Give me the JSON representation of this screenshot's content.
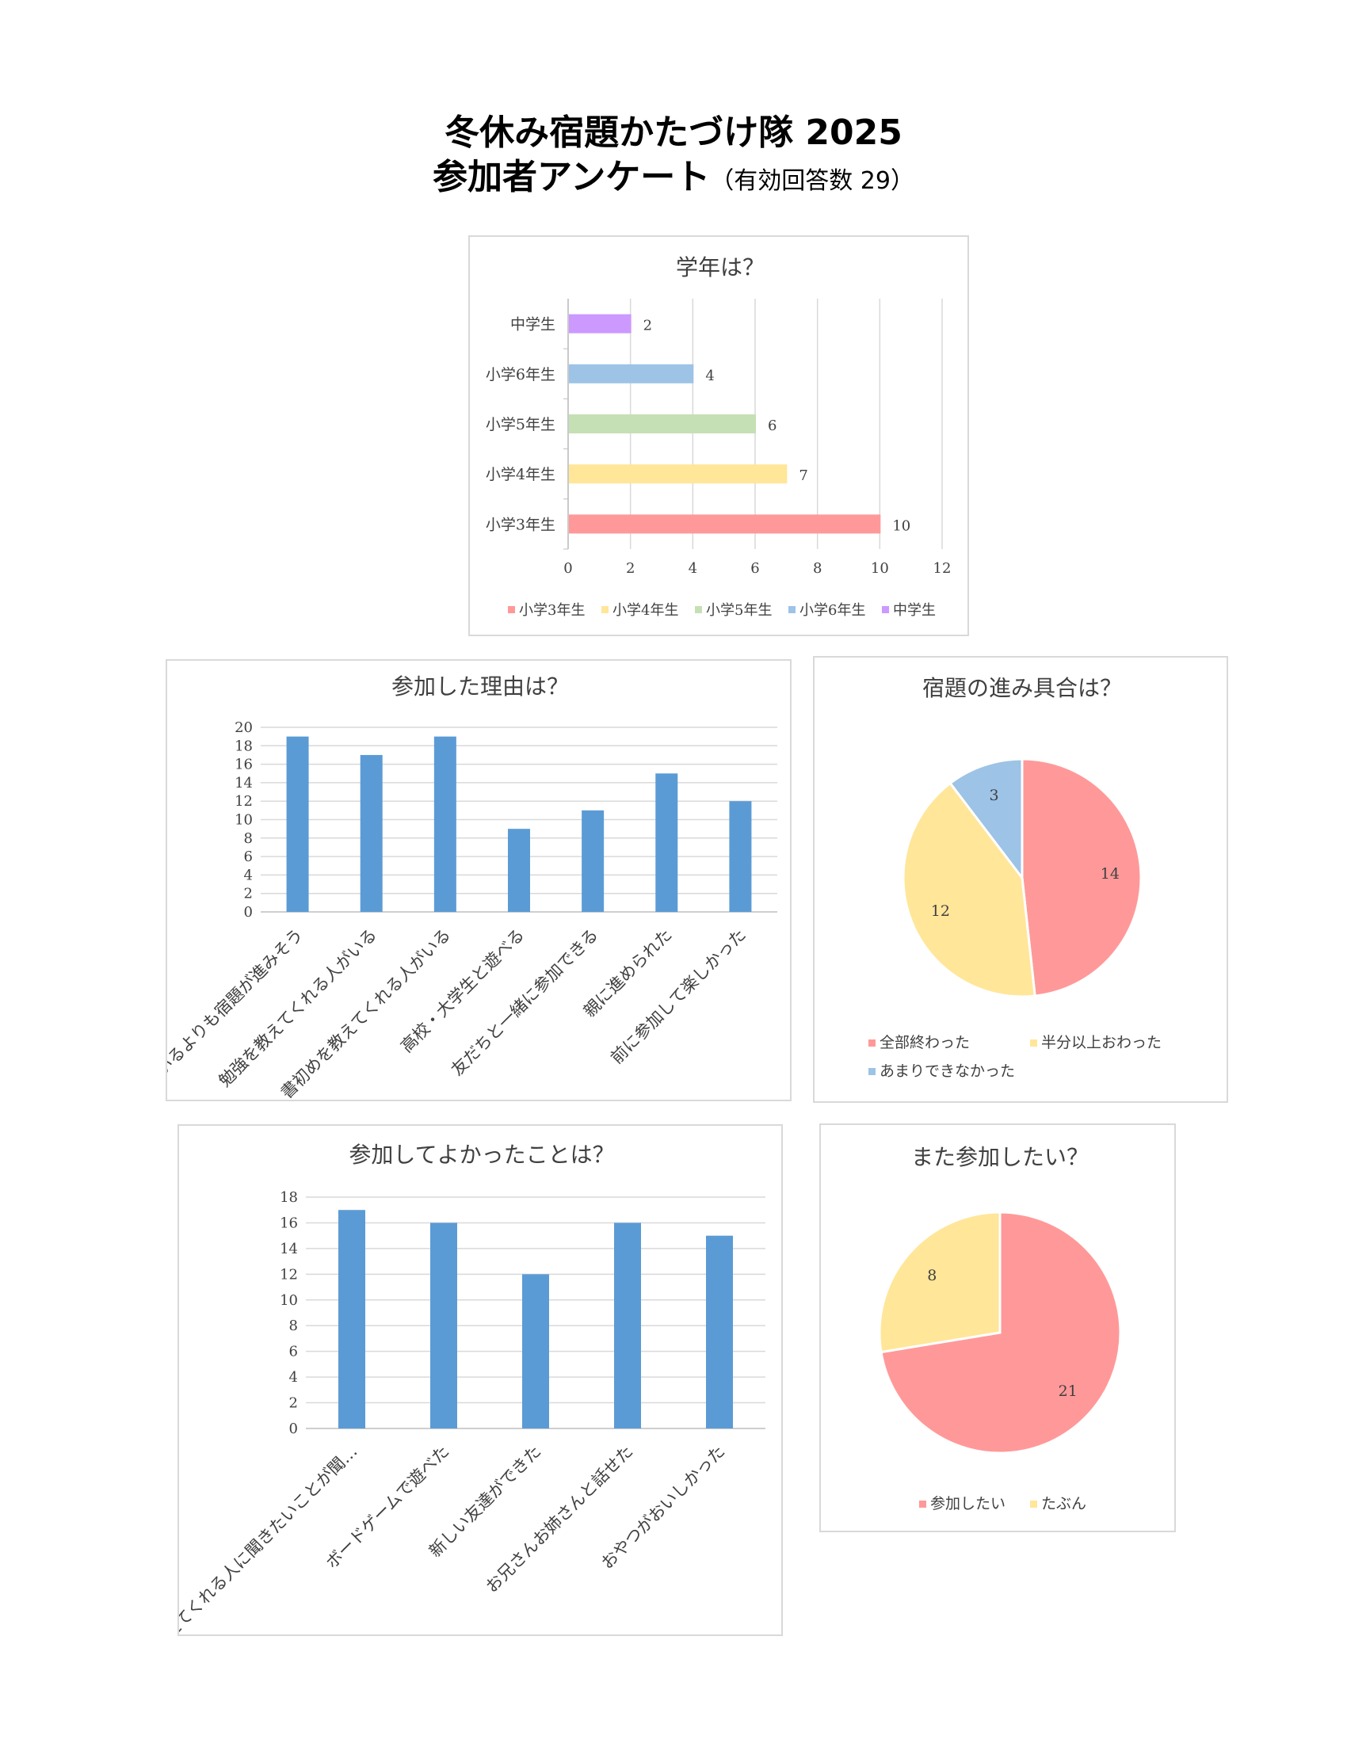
{
  "page": {
    "title_line1": "冬休み宿題かたづけ隊 2025",
    "title_line2": "参加者アンケート",
    "title_note": "（有効回答数 29）"
  },
  "chart_data": [
    {
      "id": "grade",
      "type": "bar",
      "orientation": "horizontal",
      "title": "学年は？",
      "categories": [
        "小学3年生",
        "小学4年生",
        "小学5年生",
        "小学6年生",
        "中学生"
      ],
      "values": [
        10,
        7,
        6,
        4,
        2
      ],
      "colors": [
        "#ff9999",
        "#ffe699",
        "#c5e0b4",
        "#9dc3e6",
        "#cc99ff"
      ],
      "xlim": [
        0,
        12
      ],
      "ticks": [
        0,
        2,
        4,
        6,
        8,
        10,
        12
      ],
      "legend": [
        "小学3年生",
        "小学4年生",
        "小学5年生",
        "小学6年生",
        "中学生"
      ],
      "legend_position": "bottom",
      "grid": true
    },
    {
      "id": "reason",
      "type": "bar",
      "title": "参加した理由は？",
      "categories": [
        "家にいるよりも宿題が進みそう",
        "勉強を教えてくれる人がいる",
        "書初めを教えてくれる人がいる",
        "高校・大学生と遊べる",
        "友だちと一緒に参加できる",
        "親に進められた",
        "前に参加して楽しかった"
      ],
      "values": [
        19,
        17,
        19,
        9,
        11,
        15,
        12
      ],
      "color": "#5b9bd5",
      "ylim": [
        0,
        20
      ],
      "ticks": [
        0,
        2,
        4,
        6,
        8,
        10,
        12,
        14,
        16,
        18,
        20
      ],
      "grid": true
    },
    {
      "id": "progress",
      "type": "pie",
      "title": "宿題の進み具合は？",
      "labels": [
        "全部終わった",
        "半分以上おわった",
        "あまりできなかった"
      ],
      "values": [
        14,
        12,
        3
      ],
      "colors": [
        "#ff9999",
        "#ffe699",
        "#9dc3e6"
      ],
      "legend_position": "bottom"
    },
    {
      "id": "good",
      "type": "bar",
      "title": "参加してよかったことは？",
      "categories": [
        "教えてくれる人に聞きたいことが聞…",
        "ボードゲームで遊べた",
        "新しい友達ができた",
        "お兄さんお姉さんと話せた",
        "おやつがおいしかった"
      ],
      "values": [
        17,
        16,
        12,
        16,
        15
      ],
      "color": "#5b9bd5",
      "ylim": [
        0,
        18
      ],
      "ticks": [
        0,
        2,
        4,
        6,
        8,
        10,
        12,
        14,
        16,
        18
      ],
      "grid": true
    },
    {
      "id": "again",
      "type": "pie",
      "title": "また参加したい？",
      "labels": [
        "参加したい",
        "たぶん"
      ],
      "values": [
        21,
        8
      ],
      "colors": [
        "#ff9999",
        "#ffe699"
      ],
      "legend_position": "bottom"
    }
  ]
}
